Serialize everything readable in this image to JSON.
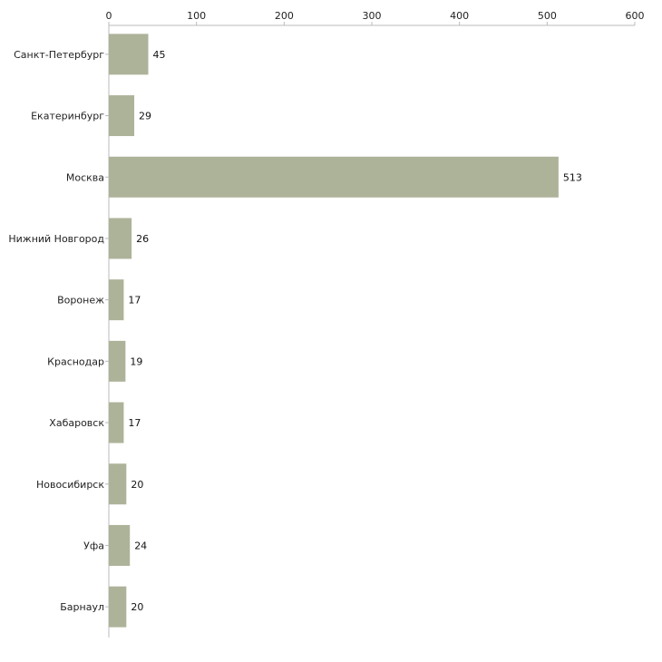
{
  "chart_data": {
    "type": "bar",
    "orientation": "horizontal",
    "title": "",
    "xlabel": "",
    "ylabel": "",
    "categories": [
      "Санкт-Петербург",
      "Екатеринбург",
      "Москва",
      "Нижний Новгород",
      "Воронеж",
      "Краснодар",
      "Хабаровск",
      "Новосибирск",
      "Уфа",
      "Барнаул"
    ],
    "values": [
      45,
      29,
      513,
      26,
      17,
      19,
      17,
      20,
      24,
      20
    ],
    "xlim": [
      0,
      600
    ],
    "xticks": [
      0,
      100,
      200,
      300,
      400,
      500,
      600
    ],
    "axis_position": "top",
    "grid": false,
    "legend": "none",
    "bar_color": "#adb399",
    "axis_color": "#bbbbbb",
    "text_color": "#222222"
  }
}
